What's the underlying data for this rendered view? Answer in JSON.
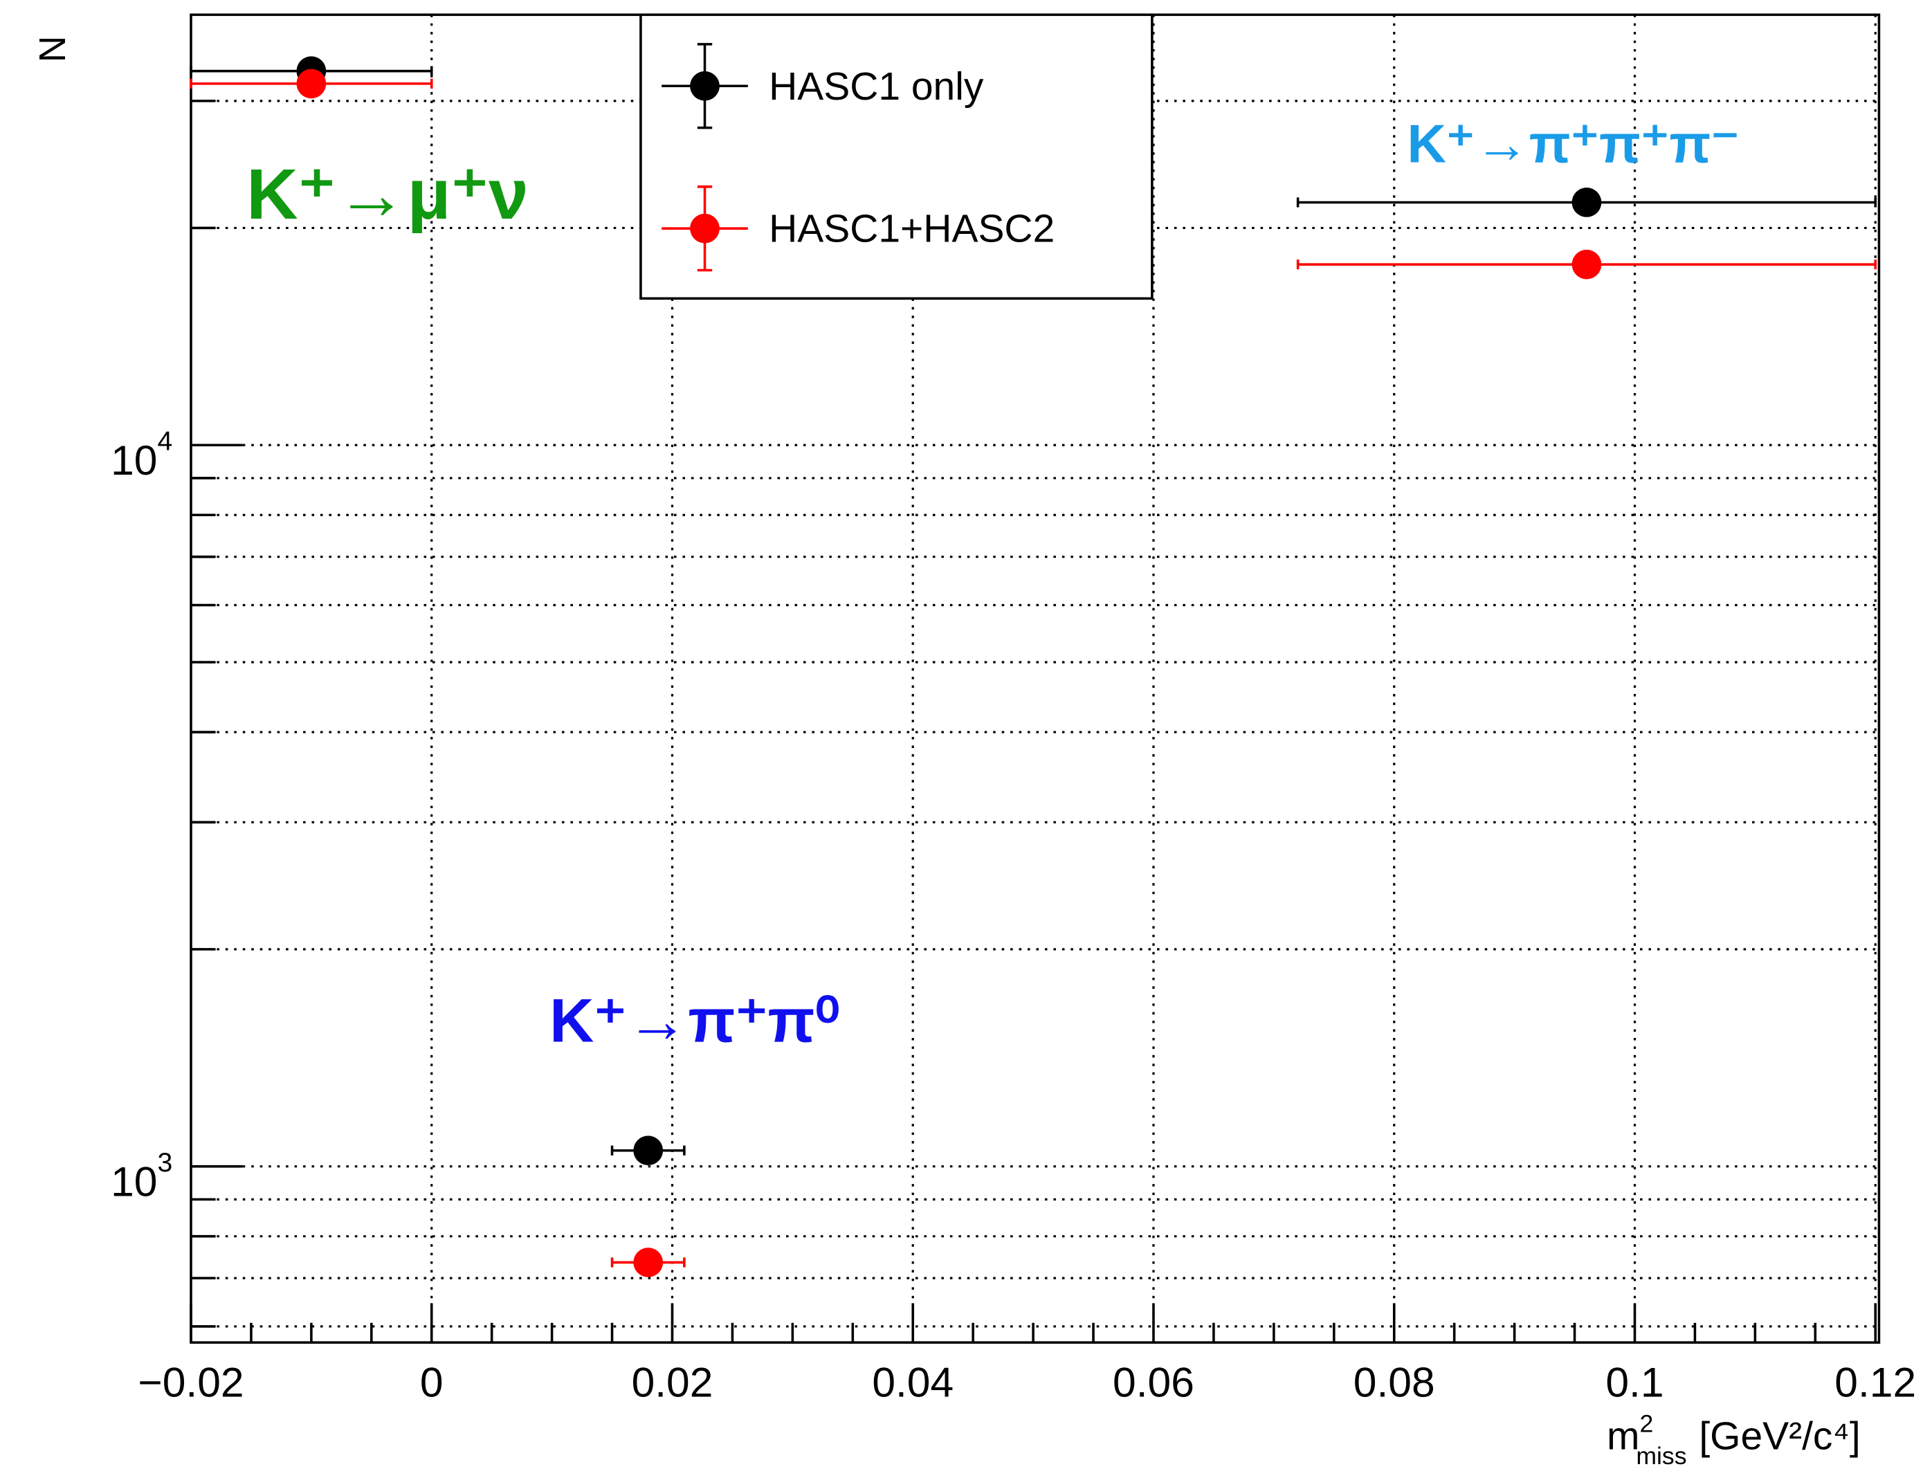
{
  "chart_data": {
    "type": "errorbar",
    "x_label": {
      "base": "m",
      "sup": "2",
      "sub": "miss",
      "unit": "[GeV²/c⁴]"
    },
    "y_label": "N",
    "xlim": [
      -0.02,
      0.1203
    ],
    "ylim": [
      570,
      39500
    ],
    "log_y": true,
    "grid": true,
    "xticks": [
      {
        "value": -0.02,
        "label": "−0.02"
      },
      0,
      0.02,
      0.04,
      0.06,
      0.08,
      0.1,
      0.12
    ],
    "xminor": [
      -0.015,
      -0.01,
      -0.005,
      0.005,
      0.01,
      0.015,
      0.025,
      0.03,
      0.035,
      0.045,
      0.05,
      0.055,
      0.065,
      0.07,
      0.075,
      0.085,
      0.09,
      0.095,
      0.105,
      0.11,
      0.115
    ],
    "yticks": [
      {
        "value": 1000,
        "label": "10",
        "sup": "3"
      },
      {
        "value": 10000,
        "label": "10",
        "sup": "4"
      }
    ],
    "yminor": [
      600,
      700,
      800,
      900,
      2000,
      3000,
      4000,
      5000,
      6000,
      7000,
      8000,
      9000,
      20000,
      30000
    ],
    "series": [
      {
        "name": "HASC1 only",
        "color": "#000000",
        "x": [
          -0.01,
          0.018,
          0.096
        ],
        "xerr": [
          0.01,
          0.003,
          0.024
        ],
        "values": [
          33000,
          1052,
          21700
        ]
      },
      {
        "name": "HASC1+HASC2",
        "color": "#ff0000",
        "x": [
          -0.01,
          0.018,
          0.096
        ],
        "xerr": [
          0.01,
          0.003,
          0.024
        ],
        "values": [
          31700,
          736,
          17800
        ]
      }
    ],
    "annotations": [
      {
        "text": "K⁺→μ⁺ν",
        "color": "#119911"
      },
      {
        "text": "K⁺→π⁺π⁺π⁻",
        "color": "#1a9be8"
      },
      {
        "text": "K⁺→π⁺π⁰",
        "color": "#1010ee"
      }
    ]
  }
}
